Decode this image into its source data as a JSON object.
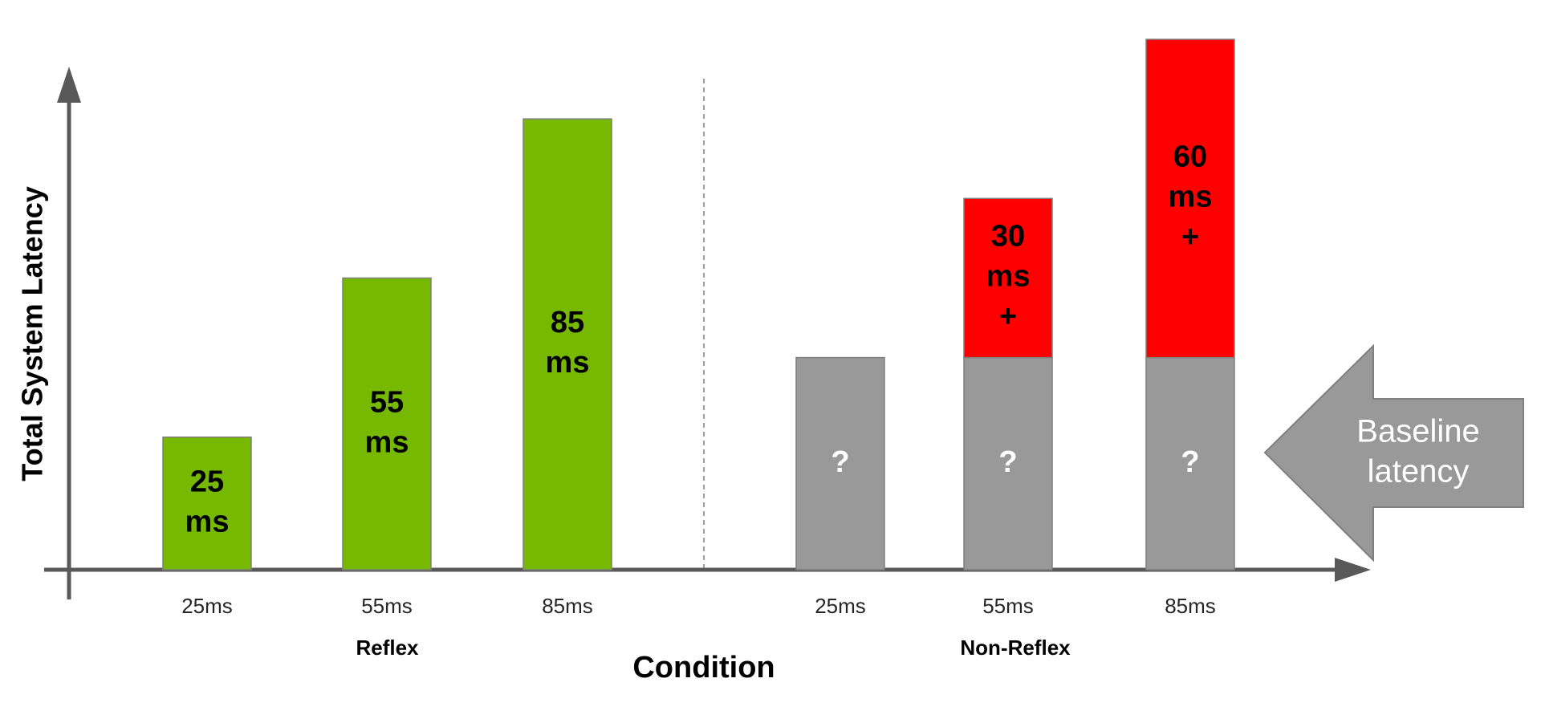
{
  "chart_data": {
    "type": "bar",
    "y_label": "Total System Latency",
    "x_label": "Condition",
    "ylim": [
      0,
      100
    ],
    "annotation": "Baseline latency",
    "groups": [
      {
        "name": "Reflex",
        "categories": [
          "25ms",
          "55ms",
          "85ms"
        ],
        "series": [
          {
            "color": "#76b900",
            "values": [
              25,
              55,
              85
            ],
            "value_labels": [
              "25 ms",
              "55 ms",
              "85 ms"
            ]
          }
        ]
      },
      {
        "name": "Non-Reflex",
        "categories": [
          "25ms",
          "55ms",
          "85ms"
        ],
        "series": [
          {
            "color": "#999999",
            "values": [
              40,
              40,
              40
            ],
            "value_labels": [
              "?",
              "?",
              "?"
            ]
          },
          {
            "color": "#ff0000",
            "values": [
              null,
              30,
              60
            ],
            "value_labels": [
              null,
              "30 ms +",
              "60 ms +"
            ]
          }
        ]
      }
    ]
  }
}
